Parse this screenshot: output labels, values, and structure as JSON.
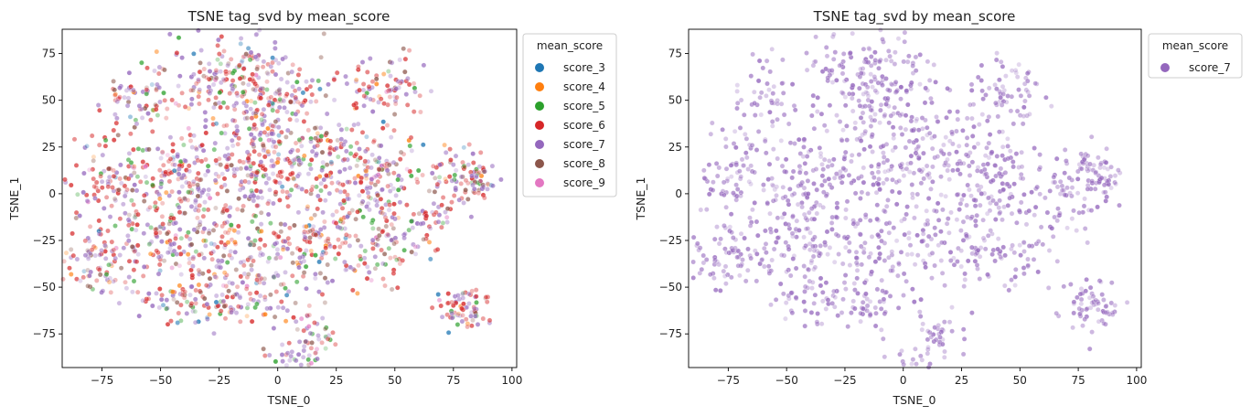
{
  "chart_data": [
    {
      "type": "scatter",
      "title": "TSNE tag_svd by mean_score",
      "xlabel": "TSNE_0",
      "ylabel": "TSNE_1",
      "xlim": [
        -92,
        102
      ],
      "ylim": [
        -93,
        88
      ],
      "xticks": [
        -75,
        -50,
        -25,
        0,
        25,
        50,
        75,
        100
      ],
      "yticks": [
        -75,
        -50,
        -25,
        0,
        25,
        50,
        75
      ],
      "x_tick_labels": [
        "−75",
        "−50",
        "−25",
        "0",
        "25",
        "50",
        "75",
        "100"
      ],
      "y_tick_labels": [
        "−75",
        "−50",
        "−25",
        "0",
        "25",
        "50",
        "75"
      ],
      "grid": false,
      "legend": {
        "title": "mean_score",
        "placement": "outside-top-right",
        "entries": [
          "score_3",
          "score_4",
          "score_5",
          "score_6",
          "score_7",
          "score_8",
          "score_9"
        ]
      },
      "series": [
        {
          "name": "score_3",
          "color": "#1f77b4"
        },
        {
          "name": "score_4",
          "color": "#ff7f0e"
        },
        {
          "name": "score_5",
          "color": "#2ca02c"
        },
        {
          "name": "score_6",
          "color": "#d62728"
        },
        {
          "name": "score_7",
          "color": "#9467bd"
        },
        {
          "name": "score_8",
          "color": "#8c564b"
        },
        {
          "name": "score_9",
          "color": "#e377c2"
        }
      ],
      "clusters": [
        {
          "x": -20,
          "y": 60,
          "sx": 14,
          "sy": 16,
          "n": 210
        },
        {
          "x": -58,
          "y": 52,
          "sx": 8,
          "sy": 9,
          "n": 70
        },
        {
          "x": 0,
          "y": 45,
          "sx": 12,
          "sy": 14,
          "n": 120
        },
        {
          "x": 45,
          "y": 55,
          "sx": 9,
          "sy": 10,
          "n": 90
        },
        {
          "x": -70,
          "y": 10,
          "sx": 10,
          "sy": 12,
          "n": 110
        },
        {
          "x": -40,
          "y": 10,
          "sx": 10,
          "sy": 12,
          "n": 130
        },
        {
          "x": -10,
          "y": 10,
          "sx": 12,
          "sy": 12,
          "n": 150
        },
        {
          "x": 20,
          "y": 20,
          "sx": 11,
          "sy": 10,
          "n": 110
        },
        {
          "x": 45,
          "y": 10,
          "sx": 8,
          "sy": 9,
          "n": 80
        },
        {
          "x": 75,
          "y": 10,
          "sx": 8,
          "sy": 8,
          "n": 55
        },
        {
          "x": 85,
          "y": 8,
          "sx": 5,
          "sy": 6,
          "n": 50
        },
        {
          "x": 65,
          "y": -10,
          "sx": 9,
          "sy": 8,
          "n": 40
        },
        {
          "x": -75,
          "y": -35,
          "sx": 9,
          "sy": 9,
          "n": 100
        },
        {
          "x": -45,
          "y": -25,
          "sx": 11,
          "sy": 12,
          "n": 120
        },
        {
          "x": -15,
          "y": -30,
          "sx": 12,
          "sy": 13,
          "n": 140
        },
        {
          "x": 15,
          "y": -30,
          "sx": 10,
          "sy": 11,
          "n": 100
        },
        {
          "x": 45,
          "y": -30,
          "sx": 10,
          "sy": 11,
          "n": 90
        },
        {
          "x": -40,
          "y": -58,
          "sx": 8,
          "sy": 6,
          "n": 60
        },
        {
          "x": -15,
          "y": -60,
          "sx": 9,
          "sy": 7,
          "n": 60
        },
        {
          "x": 15,
          "y": -75,
          "sx": 6,
          "sy": 7,
          "n": 50
        },
        {
          "x": 5,
          "y": -88,
          "sx": 5,
          "sy": 3,
          "n": 20
        },
        {
          "x": 80,
          "y": -60,
          "sx": 6,
          "sy": 6,
          "n": 70
        },
        {
          "x": 30,
          "y": -5,
          "sx": 8,
          "sy": 8,
          "n": 60
        }
      ]
    },
    {
      "type": "scatter",
      "title": "TSNE tag_svd by mean_score",
      "xlabel": "TSNE_0",
      "ylabel": "TSNE_1",
      "xlim": [
        -92,
        102
      ],
      "ylim": [
        -93,
        88
      ],
      "xticks": [
        -75,
        -50,
        -25,
        0,
        25,
        50,
        75,
        100
      ],
      "yticks": [
        -75,
        -50,
        -25,
        0,
        25,
        50,
        75
      ],
      "x_tick_labels": [
        "−75",
        "−50",
        "−25",
        "0",
        "25",
        "50",
        "75",
        "100"
      ],
      "y_tick_labels": [
        "−75",
        "−50",
        "−25",
        "0",
        "25",
        "50",
        "75"
      ],
      "grid": false,
      "legend": {
        "title": "mean_score",
        "placement": "outside-top-right",
        "entries": [
          "score_7"
        ]
      },
      "series": [
        {
          "name": "score_7",
          "color": "#9467bd"
        }
      ],
      "clusters": [
        {
          "x": -20,
          "y": 60,
          "sx": 14,
          "sy": 16,
          "n": 150
        },
        {
          "x": -58,
          "y": 52,
          "sx": 8,
          "sy": 9,
          "n": 45
        },
        {
          "x": 0,
          "y": 45,
          "sx": 12,
          "sy": 14,
          "n": 80
        },
        {
          "x": 45,
          "y": 55,
          "sx": 9,
          "sy": 10,
          "n": 70
        },
        {
          "x": -70,
          "y": 10,
          "sx": 10,
          "sy": 12,
          "n": 80
        },
        {
          "x": -40,
          "y": 10,
          "sx": 10,
          "sy": 12,
          "n": 90
        },
        {
          "x": -10,
          "y": 10,
          "sx": 12,
          "sy": 12,
          "n": 100
        },
        {
          "x": 20,
          "y": 20,
          "sx": 11,
          "sy": 10,
          "n": 80
        },
        {
          "x": 45,
          "y": 10,
          "sx": 8,
          "sy": 9,
          "n": 60
        },
        {
          "x": 75,
          "y": 10,
          "sx": 8,
          "sy": 8,
          "n": 45
        },
        {
          "x": 85,
          "y": 8,
          "sx": 5,
          "sy": 6,
          "n": 45
        },
        {
          "x": 65,
          "y": -10,
          "sx": 9,
          "sy": 8,
          "n": 30
        },
        {
          "x": -75,
          "y": -35,
          "sx": 9,
          "sy": 9,
          "n": 75
        },
        {
          "x": -45,
          "y": -25,
          "sx": 11,
          "sy": 12,
          "n": 85
        },
        {
          "x": -15,
          "y": -30,
          "sx": 12,
          "sy": 13,
          "n": 100
        },
        {
          "x": 15,
          "y": -30,
          "sx": 10,
          "sy": 11,
          "n": 70
        },
        {
          "x": 45,
          "y": -30,
          "sx": 10,
          "sy": 11,
          "n": 65
        },
        {
          "x": -40,
          "y": -58,
          "sx": 8,
          "sy": 6,
          "n": 40
        },
        {
          "x": -15,
          "y": -60,
          "sx": 9,
          "sy": 7,
          "n": 40
        },
        {
          "x": 15,
          "y": -75,
          "sx": 6,
          "sy": 7,
          "n": 35
        },
        {
          "x": 5,
          "y": -88,
          "sx": 5,
          "sy": 3,
          "n": 12
        },
        {
          "x": 80,
          "y": -60,
          "sx": 6,
          "sy": 6,
          "n": 65
        },
        {
          "x": 30,
          "y": -5,
          "sx": 8,
          "sy": 8,
          "n": 40
        }
      ]
    }
  ]
}
